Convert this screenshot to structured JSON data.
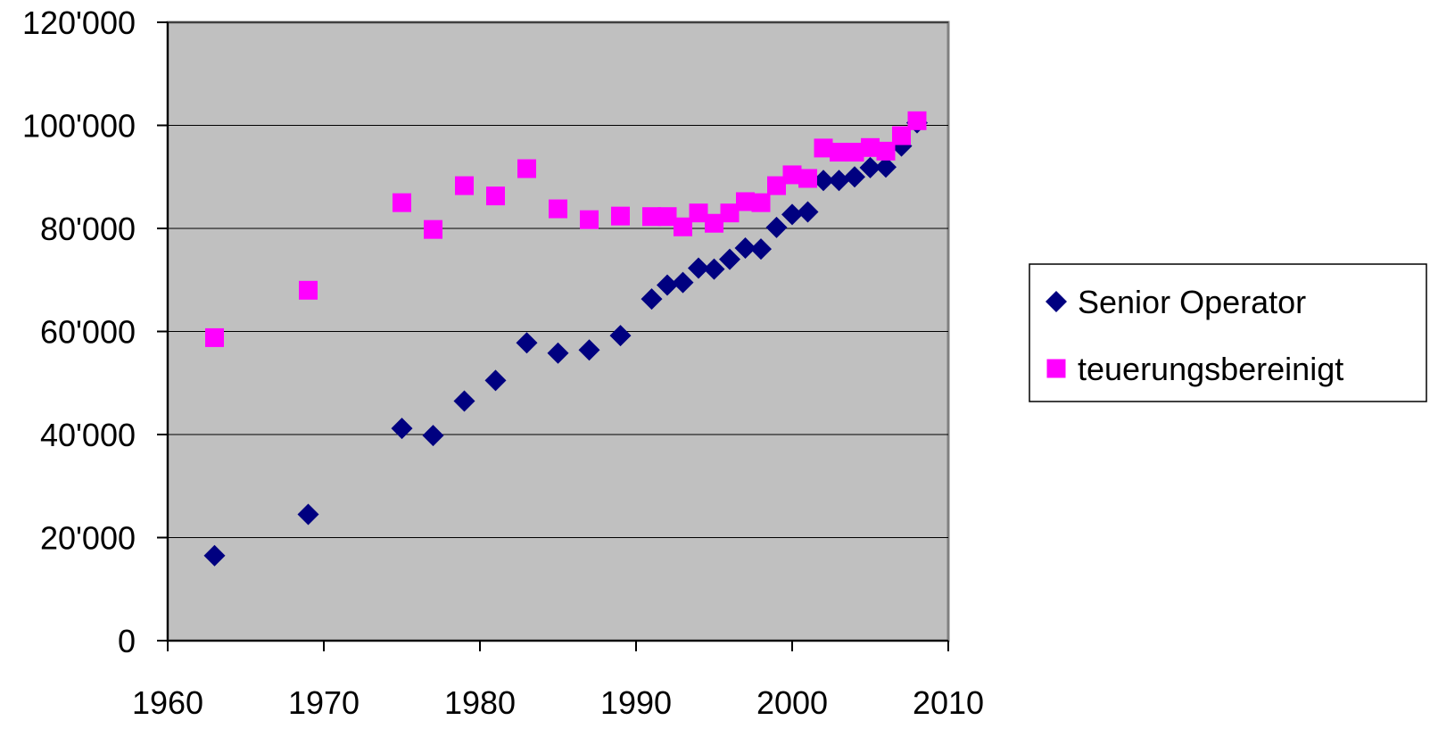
{
  "chart_data": {
    "type": "scatter",
    "title": "",
    "xlabel": "",
    "ylabel": "",
    "xlim": [
      1960,
      2010
    ],
    "ylim": [
      0,
      120000
    ],
    "x_ticks": [
      1960,
      1970,
      1980,
      1990,
      2000,
      2010
    ],
    "y_ticks": [
      0,
      20000,
      40000,
      60000,
      80000,
      100000,
      120000
    ],
    "x_tick_labels": [
      "1960",
      "1970",
      "1980",
      "1990",
      "2000",
      "2010"
    ],
    "y_tick_labels": [
      "0",
      "20'000",
      "40'000",
      "60'000",
      "80'000",
      "100'000",
      "120'000"
    ],
    "grid": "horizontal",
    "plot_background": "#c0c0c0",
    "legend_position": "right",
    "series": [
      {
        "name": "Senior Operator",
        "marker": "diamond",
        "color": "#000080",
        "points": [
          [
            1963,
            16500
          ],
          [
            1969,
            24500
          ],
          [
            1975,
            41200
          ],
          [
            1977,
            39800
          ],
          [
            1979,
            46500
          ],
          [
            1981,
            50500
          ],
          [
            1983,
            57800
          ],
          [
            1985,
            55800
          ],
          [
            1987,
            56400
          ],
          [
            1989,
            59200
          ],
          [
            1991,
            66300
          ],
          [
            1992,
            69000
          ],
          [
            1993,
            69500
          ],
          [
            1994,
            72300
          ],
          [
            1995,
            72100
          ],
          [
            1996,
            74000
          ],
          [
            1997,
            76200
          ],
          [
            1998,
            76000
          ],
          [
            1999,
            80200
          ],
          [
            2000,
            82700
          ],
          [
            2001,
            83200
          ],
          [
            2002,
            89300
          ],
          [
            2003,
            89300
          ],
          [
            2004,
            90000
          ],
          [
            2005,
            91800
          ],
          [
            2006,
            91900
          ],
          [
            2007,
            96000
          ],
          [
            2008,
            100500
          ]
        ]
      },
      {
        "name": "teuerungsbereinigt",
        "marker": "square",
        "color": "#ff00ff",
        "points": [
          [
            1963,
            58800
          ],
          [
            1969,
            68000
          ],
          [
            1975,
            85000
          ],
          [
            1977,
            79800
          ],
          [
            1979,
            88300
          ],
          [
            1981,
            86300
          ],
          [
            1983,
            91600
          ],
          [
            1985,
            83800
          ],
          [
            1987,
            81700
          ],
          [
            1989,
            82400
          ],
          [
            1991,
            82300
          ],
          [
            1992,
            82300
          ],
          [
            1993,
            80300
          ],
          [
            1994,
            83000
          ],
          [
            1995,
            81000
          ],
          [
            1996,
            83000
          ],
          [
            1997,
            85200
          ],
          [
            1998,
            85000
          ],
          [
            1999,
            88300
          ],
          [
            2000,
            90400
          ],
          [
            2001,
            89700
          ],
          [
            2002,
            95600
          ],
          [
            2003,
            94800
          ],
          [
            2004,
            94800
          ],
          [
            2005,
            95700
          ],
          [
            2006,
            95000
          ],
          [
            2007,
            98000
          ],
          [
            2008,
            100900
          ]
        ]
      }
    ]
  }
}
